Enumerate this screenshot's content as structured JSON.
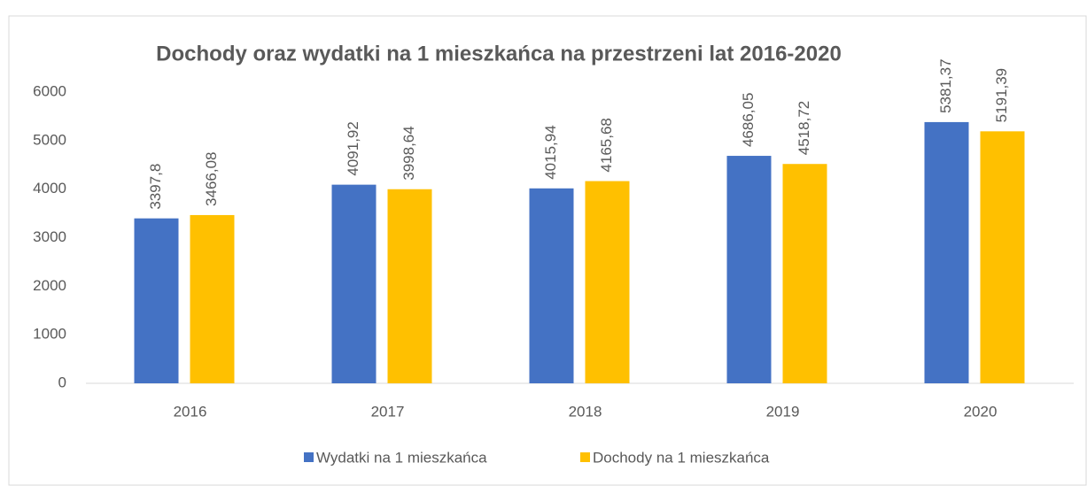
{
  "chart_data": {
    "type": "bar",
    "title": "Dochody oraz wydatki na 1 mieszkańca na przestrzeni lat 2016-2020",
    "categories": [
      "2016",
      "2017",
      "2018",
      "2019",
      "2020"
    ],
    "series": [
      {
        "name": "Wydatki na 1 mieszkańca",
        "color": "#4472c4",
        "values": [
          3397.8,
          4091.92,
          4015.94,
          4686.05,
          5381.37
        ],
        "value_labels": [
          "3397,8",
          "4091,92",
          "4015,94",
          "4686,05",
          "5381,37"
        ]
      },
      {
        "name": "Dochody na 1 mieszkańca",
        "color": "#ffc000",
        "values": [
          3466.08,
          3998.64,
          4165.68,
          4518.72,
          5191.39
        ],
        "value_labels": [
          "3466,08",
          "3998,64",
          "4165,68",
          "4518,72",
          "5191,39"
        ]
      }
    ],
    "ylim": [
      0,
      6000
    ],
    "yticks": [
      0,
      1000,
      2000,
      3000,
      4000,
      5000,
      6000
    ],
    "grid": false,
    "legend": "bottom"
  }
}
